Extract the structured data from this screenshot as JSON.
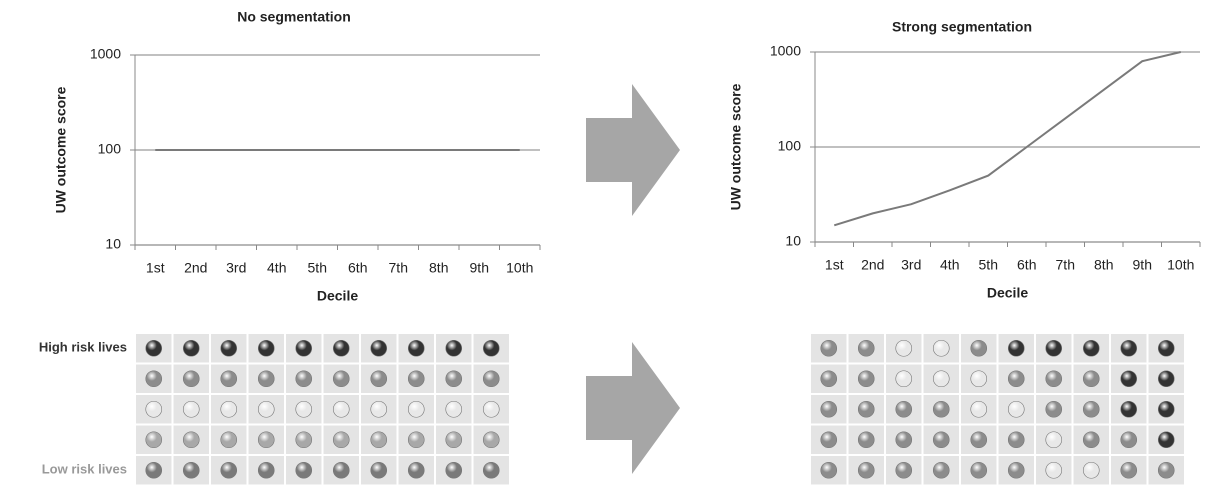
{
  "chart_data": [
    {
      "type": "line",
      "title": "No segmentation",
      "x_label": "Decile",
      "y_label": "UW outcome score",
      "categories": [
        "1st",
        "2nd",
        "3rd",
        "4th",
        "5th",
        "6th",
        "7th",
        "8th",
        "9th",
        "10th"
      ],
      "values": [
        100,
        100,
        100,
        100,
        100,
        100,
        100,
        100,
        100,
        100
      ],
      "color": "#7a7a7a",
      "log_scale": true,
      "ylim": [
        10,
        1000
      ],
      "yticks": [
        10,
        100,
        1000
      ],
      "grid": true
    },
    {
      "type": "line",
      "title": "Strong segmentation",
      "x_label": "Decile",
      "y_label": "UW outcome score",
      "categories": [
        "1st",
        "2nd",
        "3rd",
        "4th",
        "5th",
        "6th",
        "7th",
        "8th",
        "9th",
        "10th"
      ],
      "values": [
        15,
        20,
        25,
        35,
        50,
        100,
        200,
        400,
        800,
        1000
      ],
      "color": "#7a7a7a",
      "log_scale": true,
      "ylim": [
        10,
        1000
      ],
      "yticks": [
        10,
        100,
        1000
      ],
      "grid": true
    }
  ],
  "ball_grids": [
    {
      "row_labels": [
        "High risk lives",
        null,
        null,
        null,
        "Low risk lives"
      ],
      "rows": [
        [
          "#333333",
          "#333333",
          "#333333",
          "#333333",
          "#333333",
          "#333333",
          "#333333",
          "#333333",
          "#333333",
          "#333333"
        ],
        [
          "#8c8c8c",
          "#8c8c8c",
          "#8c8c8c",
          "#8c8c8c",
          "#8c8c8c",
          "#8c8c8c",
          "#8c8c8c",
          "#8c8c8c",
          "#8c8c8c",
          "#8c8c8c"
        ],
        [
          "#e8e8e8",
          "#e8e8e8",
          "#e8e8e8",
          "#e8e8e8",
          "#e8e8e8",
          "#e8e8e8",
          "#e8e8e8",
          "#e8e8e8",
          "#e8e8e8",
          "#e8e8e8"
        ],
        [
          "#a8a8a8",
          "#a8a8a8",
          "#a8a8a8",
          "#a8a8a8",
          "#a8a8a8",
          "#a8a8a8",
          "#a8a8a8",
          "#a8a8a8",
          "#a8a8a8",
          "#a8a8a8"
        ],
        [
          "#7a7a7a",
          "#7a7a7a",
          "#7a7a7a",
          "#7a7a7a",
          "#7a7a7a",
          "#7a7a7a",
          "#7a7a7a",
          "#7a7a7a",
          "#7a7a7a",
          "#7a7a7a"
        ]
      ]
    },
    {
      "rows": [
        [
          "#8c8c8c",
          "#8c8c8c",
          "#e8e8e8",
          "#e8e8e8",
          "#8c8c8c",
          "#333333",
          "#333333",
          "#333333",
          "#333333",
          "#333333"
        ],
        [
          "#8c8c8c",
          "#8c8c8c",
          "#e8e8e8",
          "#e8e8e8",
          "#e8e8e8",
          "#8c8c8c",
          "#8c8c8c",
          "#8c8c8c",
          "#333333",
          "#333333"
        ],
        [
          "#8c8c8c",
          "#8c8c8c",
          "#8c8c8c",
          "#8c8c8c",
          "#e8e8e8",
          "#e8e8e8",
          "#8c8c8c",
          "#8c8c8c",
          "#333333",
          "#333333"
        ],
        [
          "#8c8c8c",
          "#8c8c8c",
          "#8c8c8c",
          "#8c8c8c",
          "#8c8c8c",
          "#8c8c8c",
          "#e8e8e8",
          "#8c8c8c",
          "#8c8c8c",
          "#333333"
        ],
        [
          "#8c8c8c",
          "#8c8c8c",
          "#8c8c8c",
          "#8c8c8c",
          "#8c8c8c",
          "#8c8c8c",
          "#e8e8e8",
          "#e8e8e8",
          "#8c8c8c",
          "#8c8c8c"
        ]
      ]
    }
  ]
}
